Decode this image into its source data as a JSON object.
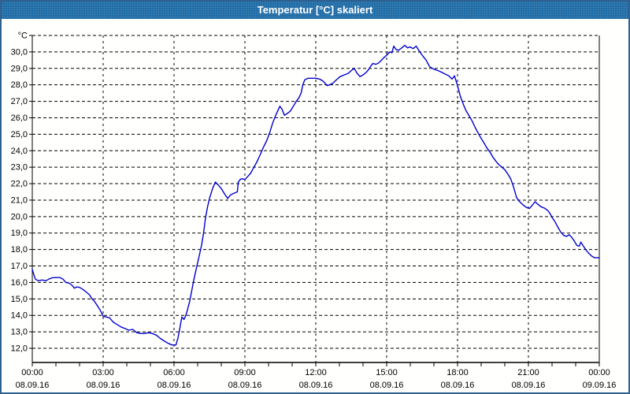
{
  "window": {
    "title": "Temperatur [°C] skaliert",
    "titlebar_color": "#1e6ba6",
    "border_color": "#2e6090",
    "background_color": "#fffffe"
  },
  "chart_data": {
    "type": "line",
    "title": "Temperatur [°C] skaliert",
    "ylabel": "°C",
    "xlabel": "",
    "line_color": "#0000cc",
    "grid_color": "#000000",
    "grid_style": "dashed",
    "legend": "none",
    "y_axis": {
      "min": 12.0,
      "max": 30.0,
      "step": 1.0,
      "unit_label": "°C",
      "tick_labels_top_to_bottom": [
        "°C",
        "30,0",
        "29,0",
        "28,0",
        "27,0",
        "26,0",
        "25,0",
        "24,0",
        "23,0",
        "22,0",
        "21,0",
        "20,0",
        "19,0",
        "18,0",
        "17,0",
        "16,0",
        "15,0",
        "14,0",
        "13,0",
        "12,0"
      ]
    },
    "x_axis": {
      "span_hours": 24,
      "major_tick_hours": 3,
      "minor_tick_hours": 1,
      "ticks": [
        {
          "t": 0,
          "time": "00:00",
          "date": "08.09.16"
        },
        {
          "t": 3,
          "time": "03:00",
          "date": "08.09.16"
        },
        {
          "t": 6,
          "time": "06:00",
          "date": "08.09.16"
        },
        {
          "t": 9,
          "time": "09:00",
          "date": "08.09.16"
        },
        {
          "t": 12,
          "time": "12:00",
          "date": "08.09.16"
        },
        {
          "t": 15,
          "time": "15:00",
          "date": "08.09.16"
        },
        {
          "t": 18,
          "time": "18:00",
          "date": "08.09.16"
        },
        {
          "t": 21,
          "time": "21:00",
          "date": "08.09.16"
        },
        {
          "t": 24,
          "time": "00:00",
          "date": "09.09.16"
        }
      ]
    },
    "series": [
      {
        "name": "Temperatur",
        "unit": "°C",
        "points": [
          [
            0.0,
            16.8
          ],
          [
            0.07,
            16.45
          ],
          [
            0.13,
            16.2
          ],
          [
            0.25,
            16.1
          ],
          [
            0.42,
            16.15
          ],
          [
            0.58,
            16.1
          ],
          [
            0.7,
            16.2
          ],
          [
            0.83,
            16.28
          ],
          [
            1.0,
            16.3
          ],
          [
            1.17,
            16.3
          ],
          [
            1.3,
            16.2
          ],
          [
            1.42,
            16.0
          ],
          [
            1.58,
            15.95
          ],
          [
            1.7,
            15.8
          ],
          [
            1.78,
            15.65
          ],
          [
            1.88,
            15.73
          ],
          [
            2.0,
            15.7
          ],
          [
            2.17,
            15.55
          ],
          [
            2.3,
            15.4
          ],
          [
            2.42,
            15.25
          ],
          [
            2.53,
            15.0
          ],
          [
            2.63,
            14.85
          ],
          [
            2.75,
            14.6
          ],
          [
            2.88,
            14.3
          ],
          [
            3.0,
            13.95
          ],
          [
            3.13,
            13.9
          ],
          [
            3.27,
            13.85
          ],
          [
            3.42,
            13.6
          ],
          [
            3.58,
            13.45
          ],
          [
            3.75,
            13.3
          ],
          [
            3.92,
            13.2
          ],
          [
            4.08,
            13.1
          ],
          [
            4.25,
            13.15
          ],
          [
            4.42,
            12.95
          ],
          [
            4.58,
            12.9
          ],
          [
            4.75,
            12.9
          ],
          [
            4.92,
            12.95
          ],
          [
            5.08,
            12.9
          ],
          [
            5.25,
            12.8
          ],
          [
            5.42,
            12.6
          ],
          [
            5.58,
            12.45
          ],
          [
            5.75,
            12.3
          ],
          [
            5.92,
            12.2
          ],
          [
            6.08,
            12.2
          ],
          [
            6.17,
            12.65
          ],
          [
            6.25,
            13.25
          ],
          [
            6.33,
            13.9
          ],
          [
            6.42,
            13.75
          ],
          [
            6.5,
            14.0
          ],
          [
            6.58,
            14.4
          ],
          [
            6.67,
            14.9
          ],
          [
            6.75,
            15.5
          ],
          [
            6.83,
            16.1
          ],
          [
            6.92,
            16.7
          ],
          [
            7.0,
            17.2
          ],
          [
            7.08,
            17.7
          ],
          [
            7.17,
            18.3
          ],
          [
            7.25,
            19.0
          ],
          [
            7.33,
            19.9
          ],
          [
            7.42,
            20.6
          ],
          [
            7.5,
            21.1
          ],
          [
            7.63,
            21.7
          ],
          [
            7.75,
            22.1
          ],
          [
            7.88,
            21.9
          ],
          [
            8.0,
            21.7
          ],
          [
            8.13,
            21.4
          ],
          [
            8.27,
            21.1
          ],
          [
            8.38,
            21.3
          ],
          [
            8.5,
            21.4
          ],
          [
            8.6,
            21.45
          ],
          [
            8.68,
            21.5
          ],
          [
            8.72,
            22.1
          ],
          [
            8.8,
            22.25
          ],
          [
            8.88,
            22.3
          ],
          [
            9.0,
            22.25
          ],
          [
            9.13,
            22.45
          ],
          [
            9.25,
            22.65
          ],
          [
            9.38,
            23.0
          ],
          [
            9.5,
            23.3
          ],
          [
            9.63,
            23.7
          ],
          [
            9.78,
            24.2
          ],
          [
            9.92,
            24.6
          ],
          [
            10.05,
            25.1
          ],
          [
            10.18,
            25.7
          ],
          [
            10.32,
            26.2
          ],
          [
            10.48,
            26.7
          ],
          [
            10.58,
            26.5
          ],
          [
            10.67,
            26.15
          ],
          [
            10.78,
            26.25
          ],
          [
            10.92,
            26.4
          ],
          [
            11.05,
            26.7
          ],
          [
            11.17,
            27.0
          ],
          [
            11.28,
            27.2
          ],
          [
            11.38,
            27.5
          ],
          [
            11.45,
            28.0
          ],
          [
            11.53,
            28.3
          ],
          [
            11.67,
            28.4
          ],
          [
            11.83,
            28.4
          ],
          [
            12.0,
            28.4
          ],
          [
            12.17,
            28.35
          ],
          [
            12.33,
            28.2
          ],
          [
            12.48,
            27.95
          ],
          [
            12.58,
            28.0
          ],
          [
            12.72,
            28.1
          ],
          [
            12.87,
            28.3
          ],
          [
            13.03,
            28.5
          ],
          [
            13.2,
            28.6
          ],
          [
            13.37,
            28.7
          ],
          [
            13.53,
            28.9
          ],
          [
            13.63,
            29.0
          ],
          [
            13.75,
            28.7
          ],
          [
            13.87,
            28.5
          ],
          [
            14.0,
            28.6
          ],
          [
            14.13,
            28.75
          ],
          [
            14.25,
            28.95
          ],
          [
            14.33,
            29.15
          ],
          [
            14.42,
            29.3
          ],
          [
            14.53,
            29.25
          ],
          [
            14.63,
            29.3
          ],
          [
            14.75,
            29.45
          ],
          [
            14.88,
            29.65
          ],
          [
            15.0,
            29.8
          ],
          [
            15.13,
            30.0
          ],
          [
            15.22,
            29.95
          ],
          [
            15.3,
            30.35
          ],
          [
            15.4,
            30.15
          ],
          [
            15.5,
            30.1
          ],
          [
            15.6,
            30.2
          ],
          [
            15.77,
            30.4
          ],
          [
            15.88,
            30.25
          ],
          [
            16.0,
            30.3
          ],
          [
            16.12,
            30.2
          ],
          [
            16.25,
            30.35
          ],
          [
            16.38,
            30.05
          ],
          [
            16.53,
            29.75
          ],
          [
            16.67,
            29.5
          ],
          [
            16.82,
            29.1
          ],
          [
            17.0,
            28.95
          ],
          [
            17.2,
            28.85
          ],
          [
            17.42,
            28.7
          ],
          [
            17.63,
            28.55
          ],
          [
            17.77,
            28.35
          ],
          [
            17.87,
            28.55
          ],
          [
            18.0,
            27.95
          ],
          [
            18.12,
            27.3
          ],
          [
            18.25,
            26.8
          ],
          [
            18.37,
            26.4
          ],
          [
            18.5,
            26.1
          ],
          [
            18.62,
            25.8
          ],
          [
            18.75,
            25.4
          ],
          [
            18.88,
            25.05
          ],
          [
            19.0,
            24.75
          ],
          [
            19.13,
            24.45
          ],
          [
            19.25,
            24.15
          ],
          [
            19.38,
            23.9
          ],
          [
            19.5,
            23.6
          ],
          [
            19.63,
            23.35
          ],
          [
            19.75,
            23.15
          ],
          [
            19.88,
            23.0
          ],
          [
            20.0,
            22.85
          ],
          [
            20.12,
            22.6
          ],
          [
            20.25,
            22.3
          ],
          [
            20.37,
            21.8
          ],
          [
            20.5,
            21.15
          ],
          [
            20.63,
            20.9
          ],
          [
            20.78,
            20.7
          ],
          [
            20.92,
            20.55
          ],
          [
            21.05,
            20.5
          ],
          [
            21.17,
            20.7
          ],
          [
            21.28,
            20.9
          ],
          [
            21.4,
            20.75
          ],
          [
            21.53,
            20.6
          ],
          [
            21.7,
            20.5
          ],
          [
            21.83,
            20.35
          ],
          [
            21.93,
            20.15
          ],
          [
            22.0,
            19.95
          ],
          [
            22.12,
            19.7
          ],
          [
            22.25,
            19.35
          ],
          [
            22.37,
            19.05
          ],
          [
            22.5,
            18.85
          ],
          [
            22.62,
            18.8
          ],
          [
            22.72,
            18.9
          ],
          [
            22.83,
            18.75
          ],
          [
            22.95,
            18.5
          ],
          [
            23.05,
            18.25
          ],
          [
            23.15,
            18.2
          ],
          [
            23.22,
            18.45
          ],
          [
            23.33,
            18.2
          ],
          [
            23.45,
            17.95
          ],
          [
            23.57,
            17.75
          ],
          [
            23.68,
            17.6
          ],
          [
            23.8,
            17.5
          ],
          [
            23.92,
            17.5
          ],
          [
            24.0,
            17.5
          ]
        ]
      }
    ]
  }
}
